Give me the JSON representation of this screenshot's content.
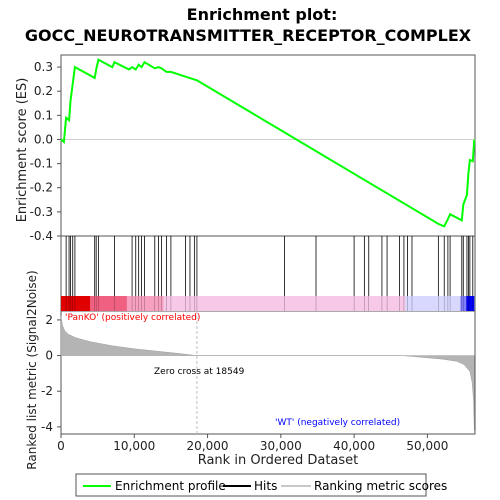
{
  "chart_data": {
    "type": "line",
    "title_line1": "Enrichment plot:",
    "title_line2": "GOCC_NEUROTRANSMITTER_RECEPTOR_COMPLEX",
    "ylabel_top": "Enrichment score (ES)",
    "ylabel_bottom": "Ranked list metric (Signal2Noise)",
    "xlabel": "Rank in Ordered Dataset",
    "x_max": 56500,
    "x_ticks": [
      0,
      10000,
      20000,
      30000,
      40000,
      50000
    ],
    "x_tick_labels": [
      "0",
      "10,000",
      "20,000",
      "30,000",
      "40,000",
      "50,000"
    ],
    "es_ylim": [
      -0.4,
      0.35
    ],
    "es_ticks": [
      0.3,
      0.2,
      0.1,
      0.0,
      -0.1,
      -0.2,
      -0.3,
      -0.4
    ],
    "es_tick_labels": [
      "0.3",
      "0.2",
      "0.1",
      "0.0",
      "-0.1",
      "-0.2",
      "-0.3",
      "-0.4"
    ],
    "metric_ylim": [
      -4.4,
      2.5
    ],
    "metric_ticks": [
      2,
      0,
      -2,
      -4
    ],
    "metric_tick_labels": [
      "2",
      "0",
      "-2",
      "-4"
    ],
    "zero_cross_rank": 18549,
    "zero_cross_label": "Zero cross at 18549",
    "pos_label": "'PanKO' (positively correlated)",
    "neg_label": "'WT' (negatively correlated)",
    "es_curve": [
      [
        0,
        0.0
      ],
      [
        400,
        -0.01
      ],
      [
        700,
        0.09
      ],
      [
        1100,
        0.08
      ],
      [
        1300,
        0.16
      ],
      [
        1600,
        0.23
      ],
      [
        1900,
        0.3
      ],
      [
        4600,
        0.255
      ],
      [
        4800,
        0.29
      ],
      [
        5100,
        0.33
      ],
      [
        7000,
        0.3
      ],
      [
        7300,
        0.32
      ],
      [
        9300,
        0.29
      ],
      [
        9700,
        0.3
      ],
      [
        10200,
        0.29
      ],
      [
        10600,
        0.31
      ],
      [
        11000,
        0.3
      ],
      [
        11400,
        0.32
      ],
      [
        12800,
        0.295
      ],
      [
        13300,
        0.3
      ],
      [
        13700,
        0.295
      ],
      [
        14400,
        0.28
      ],
      [
        15000,
        0.28
      ],
      [
        17000,
        0.26
      ],
      [
        18549,
        0.245
      ],
      [
        51500,
        -0.35
      ],
      [
        52300,
        -0.36
      ],
      [
        52800,
        -0.33
      ],
      [
        53100,
        -0.31
      ],
      [
        54700,
        -0.335
      ],
      [
        54900,
        -0.27
      ],
      [
        55400,
        -0.23
      ],
      [
        55600,
        -0.14
      ],
      [
        55800,
        -0.085
      ],
      [
        56200,
        -0.09
      ],
      [
        56400,
        0.0
      ]
    ],
    "hits": [
      700,
      1100,
      1300,
      1600,
      1900,
      4600,
      4800,
      5100,
      7300,
      9700,
      10200,
      10600,
      11000,
      11400,
      12800,
      13300,
      13700,
      14400,
      15000,
      17000,
      17600,
      18200,
      18549,
      30500,
      34800,
      40000,
      41400,
      42000,
      43800,
      44500,
      46200,
      46800,
      47300,
      47900,
      51500,
      52300,
      52800,
      53100,
      54700,
      54900,
      55400,
      55600,
      55800,
      56200
    ],
    "metric_profile": [
      [
        0,
        2.2
      ],
      [
        200,
        1.7
      ],
      [
        500,
        1.4
      ],
      [
        1000,
        1.2
      ],
      [
        2000,
        1.0
      ],
      [
        4000,
        0.78
      ],
      [
        7000,
        0.55
      ],
      [
        10000,
        0.38
      ],
      [
        13000,
        0.25
      ],
      [
        16000,
        0.12
      ],
      [
        18549,
        0.0
      ],
      [
        30000,
        0.0
      ],
      [
        46500,
        0.0
      ],
      [
        48000,
        -0.05
      ],
      [
        52000,
        -0.2
      ],
      [
        54000,
        -0.32
      ],
      [
        55000,
        -0.5
      ],
      [
        55800,
        -0.9
      ],
      [
        56100,
        -1.5
      ],
      [
        56300,
        -2.5
      ],
      [
        56400,
        -4.2
      ]
    ],
    "legend": [
      {
        "label": "Enrichment profile",
        "color": "#00ff00"
      },
      {
        "label": "Hits",
        "color": "#000000"
      },
      {
        "label": "Ranking metric scores",
        "color": "#c8c8c8"
      }
    ],
    "colors": {
      "es_line": "#00ff00",
      "hit": "#000000",
      "metric_fill": "#b4b4b4",
      "zero_line": "#c0c0c0",
      "pos_text": "#ff0000",
      "neg_text": "#0000ff",
      "bar_pos_dark": "#e00000",
      "bar_pos_light": "#f8c8e8",
      "bar_neg_light": "#d8d8ff",
      "bar_neg_dark": "#0000ff"
    }
  }
}
